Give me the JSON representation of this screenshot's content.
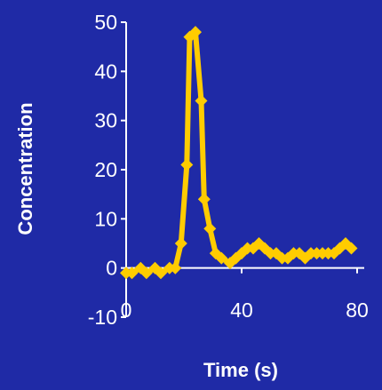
{
  "chart_data": {
    "type": "line",
    "title": "",
    "xlabel": "Time (s)",
    "ylabel": "Concentration",
    "xlim": [
      0,
      80
    ],
    "ylim": [
      -10,
      50
    ],
    "x_ticks": [
      0,
      40,
      80
    ],
    "y_ticks": [
      -10,
      0,
      10,
      20,
      30,
      40,
      50
    ],
    "x_tick_labels": [
      "0",
      "40",
      "80"
    ],
    "y_tick_labels": [
      "-10",
      "0",
      "10",
      "20",
      "30",
      "40",
      "50"
    ],
    "grid": false,
    "legend": "none",
    "colors": {
      "background": "#1f2aa6",
      "axis": "#ffffff",
      "series": "#ffcc00"
    },
    "series": [
      {
        "x": [
          0,
          2,
          5,
          7,
          10,
          12,
          15,
          17,
          19,
          21,
          22,
          24,
          26,
          27,
          29,
          31,
          33,
          36,
          38,
          40,
          42,
          44,
          46,
          48,
          50,
          52,
          54,
          56,
          58,
          60,
          62,
          64,
          66,
          68,
          70,
          72,
          74,
          76,
          78
        ],
        "y": [
          -1,
          -1,
          0,
          -1,
          0,
          -1,
          0,
          0,
          5,
          21,
          47,
          48,
          34,
          14,
          8,
          3,
          2,
          1,
          2,
          3,
          4,
          4,
          5,
          4,
          3,
          3,
          2,
          2,
          3,
          3,
          2,
          3,
          3,
          3,
          3,
          3,
          4,
          5,
          4
        ],
        "marker": "diamond"
      }
    ]
  }
}
